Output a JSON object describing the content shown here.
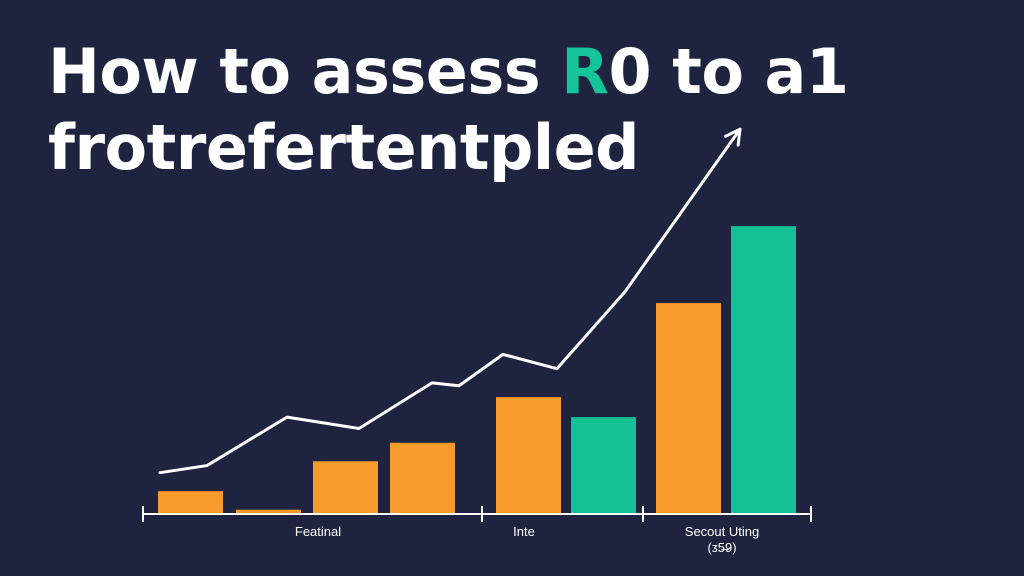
{
  "title": {
    "line1_a": "How to assess ",
    "line1_accent": "R",
    "line1_b": "0 to a1",
    "line2": "frotrefertentpled"
  },
  "colors": {
    "background": "#1e2440",
    "orange": "#f79b2c",
    "teal": "#13c197",
    "line": "#ffffff",
    "axis": "#ffffff"
  },
  "chart_data": {
    "type": "bar",
    "title": "",
    "xlabel": "",
    "ylabel": "",
    "ylim": [
      0,
      100
    ],
    "grid": false,
    "legend": "none",
    "group_labels": [
      {
        "label": "Featinal",
        "sublabel": "",
        "after_bar": 3
      },
      {
        "label": "Inte",
        "sublabel": "",
        "after_bar": 5
      },
      {
        "label": "Secout Uting",
        "sublabel": "(ᴣ5̶9)",
        "after_bar": 7
      }
    ],
    "bars": [
      {
        "value": 8,
        "color": "orange"
      },
      {
        "value": 1.5,
        "color": "orange"
      },
      {
        "value": 18.5,
        "color": "orange"
      },
      {
        "value": 25,
        "color": "orange"
      },
      {
        "value": 41,
        "color": "orange"
      },
      {
        "value": 34,
        "color": "teal"
      },
      {
        "value": 74,
        "color": "orange"
      },
      {
        "value": 101,
        "color": "teal"
      }
    ],
    "trend_line": {
      "arrow": true,
      "values": [
        14.5,
        17,
        34,
        30,
        46,
        45,
        56,
        51,
        78,
        135
      ]
    }
  }
}
